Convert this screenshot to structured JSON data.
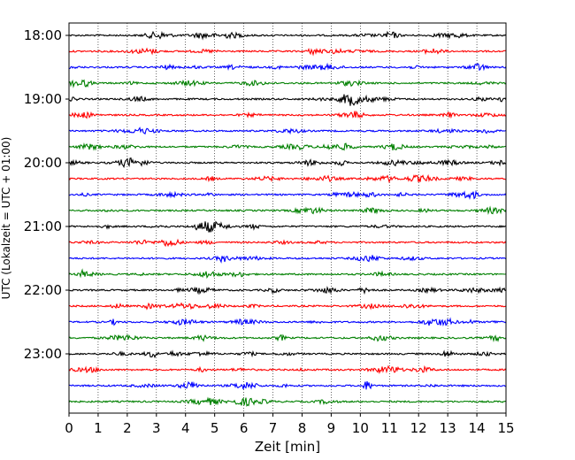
{
  "chart_data": {
    "type": "line",
    "subtype": "helicorder",
    "title": "",
    "xlabel": "Zeit  [min]",
    "ylabel": "UTC (Lokalzeit = UTC + 01:00)",
    "xlim": [
      0,
      15
    ],
    "x_ticks": [
      "0",
      "1",
      "2",
      "3",
      "4",
      "5",
      "6",
      "7",
      "8",
      "9",
      "10",
      "11",
      "12",
      "13",
      "14",
      "15"
    ],
    "y_ticks": [
      "18:00",
      "19:00",
      "20:00",
      "21:00",
      "22:00",
      "23:00"
    ],
    "trace_interval_minutes": 15,
    "trace_colors": [
      "#000000",
      "#ff0000",
      "#0000ff",
      "#008000"
    ],
    "grid": "vertical dotted at every minute",
    "series": [
      {
        "start": "18:00",
        "color": "#000000"
      },
      {
        "start": "18:15",
        "color": "#ff0000"
      },
      {
        "start": "18:30",
        "color": "#0000ff"
      },
      {
        "start": "18:45",
        "color": "#008000"
      },
      {
        "start": "19:00",
        "color": "#000000"
      },
      {
        "start": "19:15",
        "color": "#ff0000"
      },
      {
        "start": "19:30",
        "color": "#0000ff"
      },
      {
        "start": "19:45",
        "color": "#008000"
      },
      {
        "start": "20:00",
        "color": "#000000"
      },
      {
        "start": "20:15",
        "color": "#ff0000"
      },
      {
        "start": "20:30",
        "color": "#0000ff"
      },
      {
        "start": "20:45",
        "color": "#008000"
      },
      {
        "start": "21:00",
        "color": "#000000"
      },
      {
        "start": "21:15",
        "color": "#ff0000"
      },
      {
        "start": "21:30",
        "color": "#0000ff"
      },
      {
        "start": "21:45",
        "color": "#008000"
      },
      {
        "start": "22:00",
        "color": "#000000"
      },
      {
        "start": "22:15",
        "color": "#ff0000"
      },
      {
        "start": "22:30",
        "color": "#0000ff"
      },
      {
        "start": "22:45",
        "color": "#008000"
      },
      {
        "start": "23:00",
        "color": "#000000"
      },
      {
        "start": "23:15",
        "color": "#ff0000"
      },
      {
        "start": "23:30",
        "color": "#0000ff"
      },
      {
        "start": "23:45",
        "color": "#008000"
      }
    ]
  }
}
